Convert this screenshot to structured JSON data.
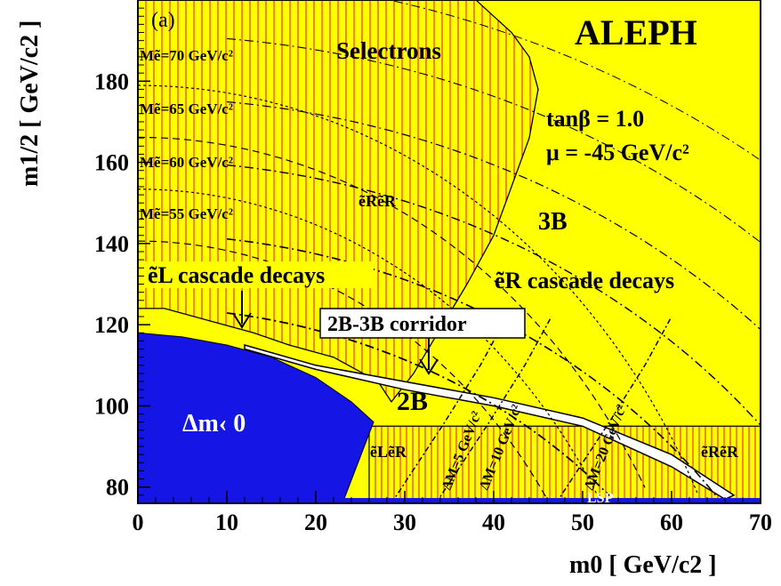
{
  "chart_data": {
    "type": "area",
    "panel_label": "(a)",
    "experiment": "ALEPH",
    "xlabel": "m0 [ GeV/c2 ]",
    "ylabel": "m1/2 [ GeV/c2 ]",
    "xlim": [
      0,
      70
    ],
    "ylim": [
      76,
      200
    ],
    "x_ticks": [
      0,
      10,
      20,
      30,
      40,
      50,
      60,
      70
    ],
    "y_ticks": [
      80,
      100,
      120,
      140,
      160,
      180
    ],
    "parameters": {
      "tan_beta": "tanβ = 1.0",
      "mu": "μ = -45 GeV/c²"
    },
    "labels": {
      "selectrons": "Selectrons",
      "three_b": "3B",
      "two_b": "2B",
      "corridor": "2B-3B corridor",
      "eL_cascade": "ẽL cascade decays",
      "eR_cascade": "ẽR cascade decays",
      "eReR_top": "ẽRẽR",
      "eLeR": "ẽLẽR",
      "eReR_bottom": "ẽRẽR",
      "dm_negative": "Δm‹ 0",
      "lsp": "LSP"
    },
    "selectron_mass_contours": [
      {
        "label": "Mẽ=70 GeV/c²",
        "mass": 70
      },
      {
        "label": "Mẽ=65 GeV/c²",
        "mass": 65
      },
      {
        "label": "Mẽ=60 GeV/c²",
        "mass": 60
      },
      {
        "label": "Mẽ=55 GeV/c²",
        "mass": 55
      }
    ],
    "delta_m_contours": [
      {
        "label": "ΔM=5 GeV/c²",
        "mass": 5
      },
      {
        "label": "ΔM=10 GeV/c²",
        "mass": 10
      },
      {
        "label": "ΔM=20 GeV/c²",
        "mass": 20
      }
    ],
    "regions": {
      "dm_negative_boundary": [
        [
          0,
          118
        ],
        [
          5,
          117
        ],
        [
          10,
          115
        ],
        [
          15,
          112
        ],
        [
          20,
          107
        ],
        [
          24,
          101
        ],
        [
          26.5,
          96
        ],
        [
          23,
          76
        ]
      ],
      "selectron_excluded_boundary": [
        [
          0,
          124
        ],
        [
          3,
          124
        ],
        [
          8,
          121
        ],
        [
          13,
          118
        ],
        [
          17,
          115
        ],
        [
          22,
          112
        ],
        [
          27,
          106
        ],
        [
          28.5,
          101
        ],
        [
          31,
          108
        ],
        [
          34,
          119
        ],
        [
          37,
          130
        ],
        [
          40,
          142
        ],
        [
          42,
          154
        ],
        [
          44,
          166
        ],
        [
          45,
          178
        ],
        [
          44,
          186
        ],
        [
          42,
          192
        ],
        [
          38,
          200
        ]
      ],
      "corridor_upper": [
        [
          12,
          115
        ],
        [
          20,
          110
        ],
        [
          30,
          106
        ],
        [
          40,
          102
        ],
        [
          50,
          97
        ],
        [
          60,
          88
        ],
        [
          67,
          78
        ]
      ],
      "corridor_lower": [
        [
          12,
          114
        ],
        [
          20,
          109
        ],
        [
          30,
          104
        ],
        [
          40,
          100
        ],
        [
          50,
          95
        ],
        [
          60,
          85
        ],
        [
          66,
          77
        ]
      ],
      "lower_band_ylim": [
        77,
        95
      ]
    },
    "colors": {
      "allowed": "#ffff00",
      "excluded_hatch": "#ff0000",
      "dm_negative": "#1515e6",
      "lsp": "#1515e6",
      "corridor": "#ffffff"
    }
  }
}
